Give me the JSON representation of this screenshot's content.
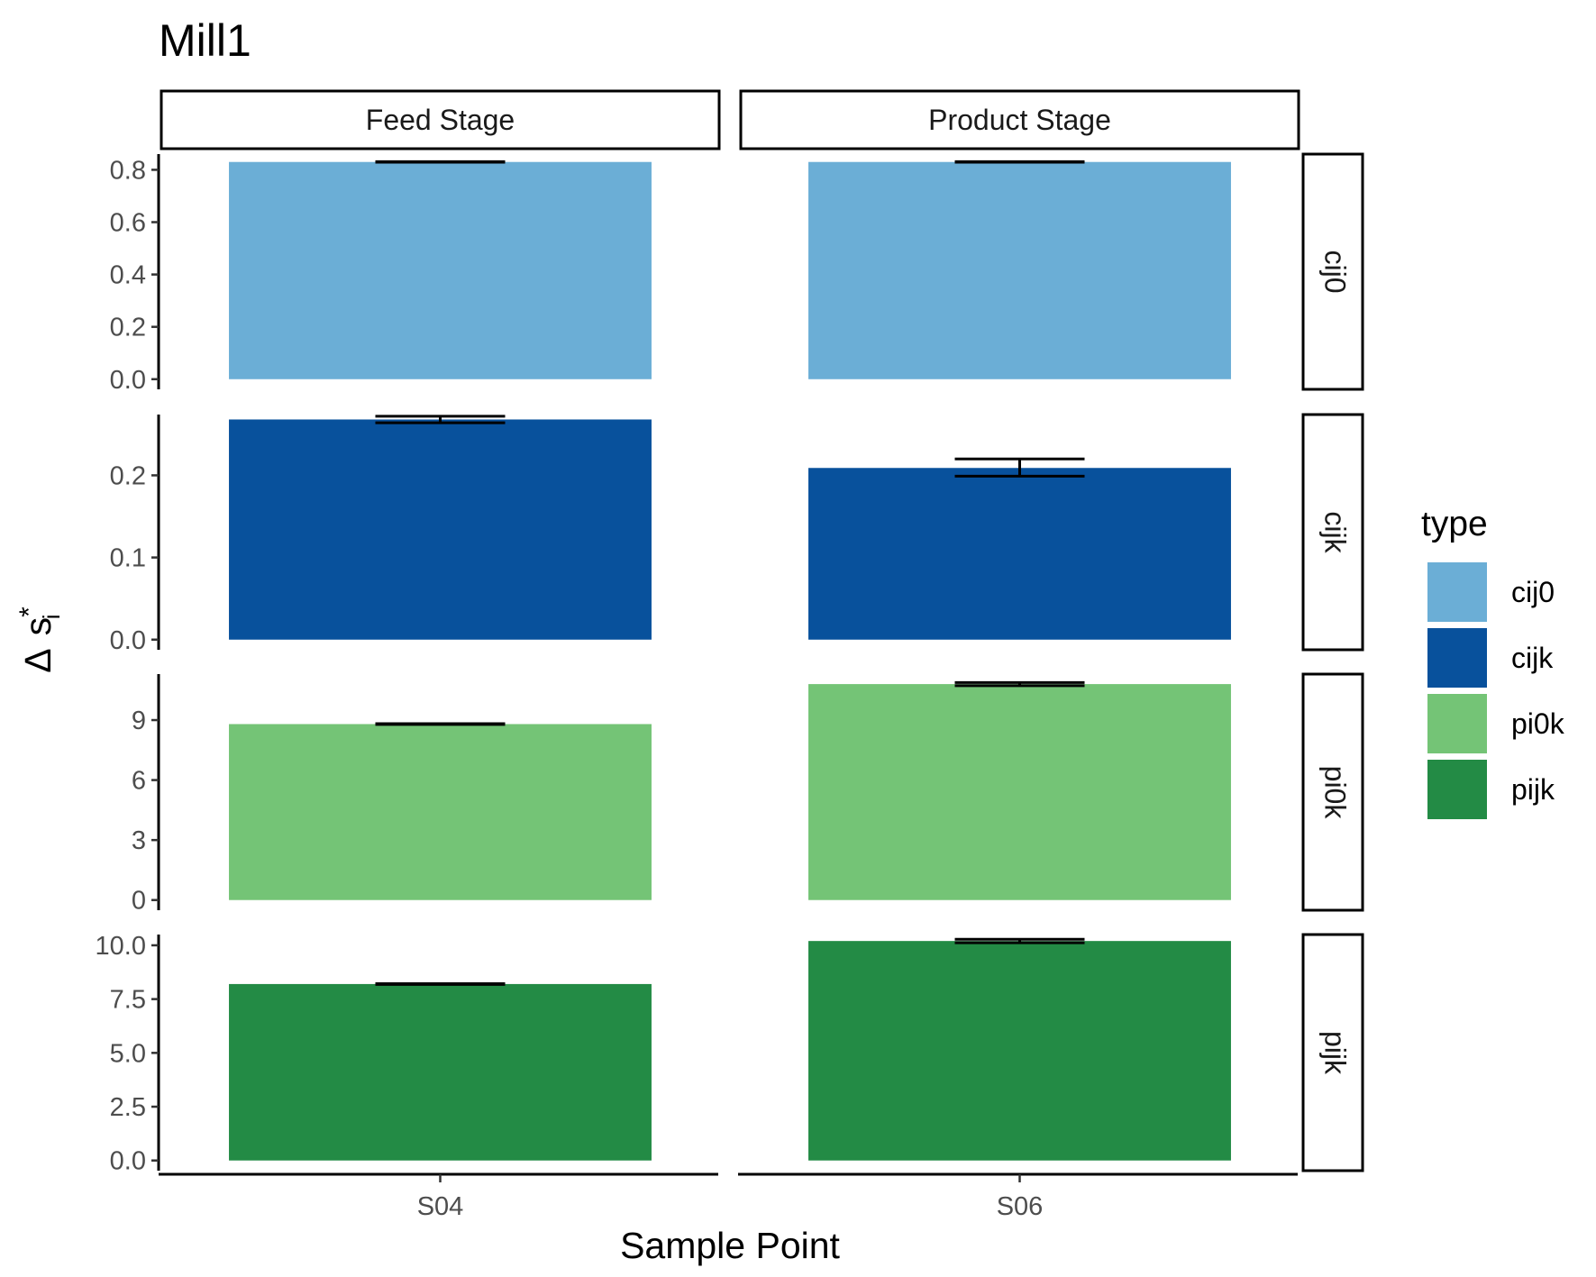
{
  "chart_data": {
    "type": "bar",
    "title": "Mill1",
    "xlabel": "Sample Point",
    "ylabel_symbol": "Δ",
    "ylabel_base": "s",
    "ylabel_sup": "*",
    "ylabel_sub": "i",
    "facet_columns": [
      {
        "label": "Feed Stage",
        "category": "S04"
      },
      {
        "label": "Product Stage",
        "category": "S06"
      }
    ],
    "facet_rows": [
      {
        "label": "cij0",
        "ylim": [
          0,
          0.86
        ],
        "ticks": [
          0.0,
          0.2,
          0.4,
          0.6,
          0.8
        ],
        "tick_labels": [
          "0.0",
          "0.2",
          "0.4",
          "0.6",
          "0.8"
        ]
      },
      {
        "label": "cijk",
        "ylim": [
          0,
          0.274
        ],
        "ticks": [
          0.0,
          0.1,
          0.2
        ],
        "tick_labels": [
          "0.0",
          "0.1",
          "0.2"
        ]
      },
      {
        "label": "pi0k",
        "ylim": [
          0,
          11.3
        ],
        "ticks": [
          0,
          3,
          6,
          9
        ],
        "tick_labels": [
          "0",
          "3",
          "6",
          "9"
        ]
      },
      {
        "label": "pijk",
        "ylim": [
          0,
          10.5
        ],
        "ticks": [
          0.0,
          2.5,
          5.0,
          7.5,
          10.0
        ],
        "tick_labels": [
          "0.0",
          "2.5",
          "5.0",
          "7.5",
          "10.0"
        ]
      }
    ],
    "series": [
      {
        "name": "cij0",
        "color": "#6baed6",
        "values": [
          0.83,
          0.83
        ],
        "errors": [
          [
            0.829,
            0.831
          ],
          [
            0.829,
            0.831
          ]
        ]
      },
      {
        "name": "cijk",
        "color": "#08519c",
        "values": [
          0.268,
          0.209
        ],
        "errors": [
          [
            0.264,
            0.272
          ],
          [
            0.199,
            0.22
          ]
        ]
      },
      {
        "name": "pi0k",
        "color": "#74c476",
        "values": [
          8.8,
          10.8
        ],
        "errors": [
          [
            8.78,
            8.82
          ],
          [
            10.72,
            10.88
          ]
        ]
      },
      {
        "name": "pijk",
        "color": "#238b45",
        "values": [
          8.2,
          10.2
        ],
        "errors": [
          [
            8.18,
            8.22
          ],
          [
            10.12,
            10.28
          ]
        ]
      }
    ],
    "legend": {
      "title": "type",
      "placement": "right",
      "entries": [
        "cij0",
        "cijk",
        "pi0k",
        "pijk"
      ]
    },
    "grid": false
  }
}
